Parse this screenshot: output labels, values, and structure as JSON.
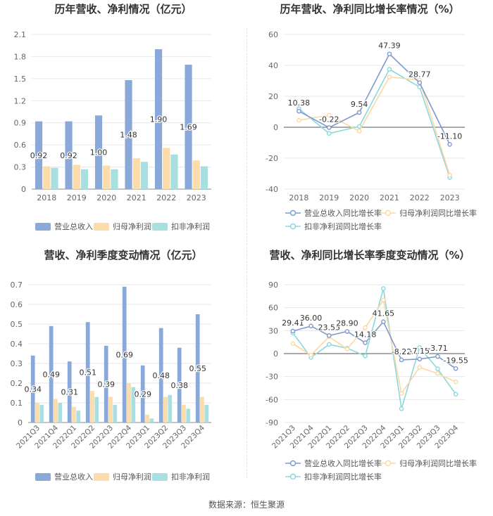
{
  "footer": "数据来源：恒生聚源",
  "colors": {
    "revenue": "#8aa9d8",
    "net_profit": "#fcdcaa",
    "deducted": "#a8e0e2",
    "revenue_line": "#7d9ad0",
    "net_line": "#fdd7a0",
    "deducted_line": "#8ad8dc"
  },
  "chart_data": [
    {
      "id": "annual-amounts",
      "type": "bar",
      "title": "历年营收、净利情况（亿元）",
      "categories": [
        "2018",
        "2019",
        "2020",
        "2021",
        "2022",
        "2023"
      ],
      "ylim": [
        0,
        2.1
      ],
      "yticks": [
        "0",
        "0.3",
        "0.6",
        "0.9",
        "1.2",
        "1.5",
        "1.8",
        "2.1"
      ],
      "series": [
        {
          "name": "营业总收入",
          "values": [
            0.92,
            0.92,
            1.0,
            1.48,
            1.9,
            1.69
          ],
          "labels": [
            "0.92",
            "0.92",
            "1.00",
            "1.48",
            "1.90",
            "1.69"
          ]
        },
        {
          "name": "归母净利润",
          "values": [
            0.31,
            0.33,
            0.32,
            0.42,
            0.56,
            0.39
          ]
        },
        {
          "name": "扣非净利润",
          "values": [
            0.29,
            0.27,
            0.27,
            0.37,
            0.47,
            0.31
          ]
        }
      ]
    },
    {
      "id": "annual-growth",
      "type": "line",
      "title": "历年营收、净利同比增长率情况（%）",
      "categories": [
        "2018",
        "2019",
        "2020",
        "2021",
        "2022",
        "2023"
      ],
      "ylim": [
        -40,
        60
      ],
      "yticks": [
        "-40",
        "-20",
        "0",
        "20",
        "40",
        "60"
      ],
      "series": [
        {
          "name": "营业总收入同比增长率",
          "values": [
            10.38,
            -0.22,
            9.54,
            47.39,
            28.77,
            -11.1
          ],
          "labels": [
            "10.38",
            "-0.22",
            "9.54",
            "47.39",
            "28.77",
            "-11.10"
          ]
        },
        {
          "name": "归母净利润同比增长率",
          "values": [
            4.5,
            7.8,
            -2.5,
            32.5,
            30.5,
            -31.0
          ]
        },
        {
          "name": "扣非净利润同比增长率",
          "values": [
            12.0,
            -4.0,
            0.5,
            37.5,
            26.0,
            -32.5
          ]
        }
      ]
    },
    {
      "id": "quarterly-amounts",
      "type": "bar",
      "title": "营收、净利季度变动情况（亿元）",
      "categories": [
        "2021Q3",
        "2021Q4",
        "2022Q1",
        "2022Q2",
        "2022Q3",
        "2022Q4",
        "2023Q1",
        "2023Q2",
        "2023Q3",
        "2023Q4"
      ],
      "ylim": [
        0,
        0.7
      ],
      "yticks": [
        "0",
        "0.1",
        "0.2",
        "0.3",
        "0.4",
        "0.5",
        "0.6",
        "0.7"
      ],
      "series": [
        {
          "name": "营业总收入",
          "values": [
            0.34,
            0.49,
            0.31,
            0.51,
            0.39,
            0.69,
            0.29,
            0.48,
            0.38,
            0.55
          ],
          "labels": [
            "0.34",
            "0.49",
            "0.31",
            "0.51",
            "0.39",
            "0.69",
            "0.29",
            "0.48",
            "0.38",
            "0.55"
          ]
        },
        {
          "name": "归母净利润",
          "values": [
            0.1,
            0.12,
            0.08,
            0.16,
            0.13,
            0.2,
            0.04,
            0.13,
            0.09,
            0.13
          ]
        },
        {
          "name": "扣非净利润",
          "values": [
            0.09,
            0.1,
            0.06,
            0.13,
            0.09,
            0.18,
            0.02,
            0.14,
            0.07,
            0.09
          ]
        }
      ]
    },
    {
      "id": "quarterly-growth",
      "type": "line",
      "title": "营收、净利同比增长率季度变动情况（%）",
      "categories": [
        "2021Q3",
        "2021Q4",
        "2022Q1",
        "2022Q2",
        "2022Q3",
        "2022Q4",
        "2023Q1",
        "2023Q2",
        "2023Q3",
        "2023Q4"
      ],
      "ylim": [
        -90,
        90
      ],
      "yticks": [
        "-90",
        "-60",
        "-30",
        "0",
        "30",
        "60",
        "90"
      ],
      "series": [
        {
          "name": "营业总收入同比增长率",
          "values": [
            29.41,
            36.0,
            23.55,
            28.9,
            14.18,
            41.65,
            -8.22,
            -7.15,
            -3.71,
            -19.55
          ],
          "labels": [
            "29.41",
            "36.00",
            "23.55",
            "28.90",
            "14.18",
            "41.65",
            "-8.22",
            "-7.15",
            "-3.71",
            "-19.55"
          ]
        },
        {
          "name": "归母净利润同比增长率",
          "values": [
            13.0,
            -2.0,
            22.0,
            6.0,
            34.0,
            70.0,
            -52.0,
            -18.0,
            -26.0,
            -37.0
          ]
        },
        {
          "name": "扣非净利润同比增长率",
          "values": [
            27.0,
            -5.0,
            12.0,
            7.0,
            -3.0,
            85.0,
            -72.0,
            8.0,
            -20.0,
            -53.0
          ]
        }
      ]
    }
  ]
}
